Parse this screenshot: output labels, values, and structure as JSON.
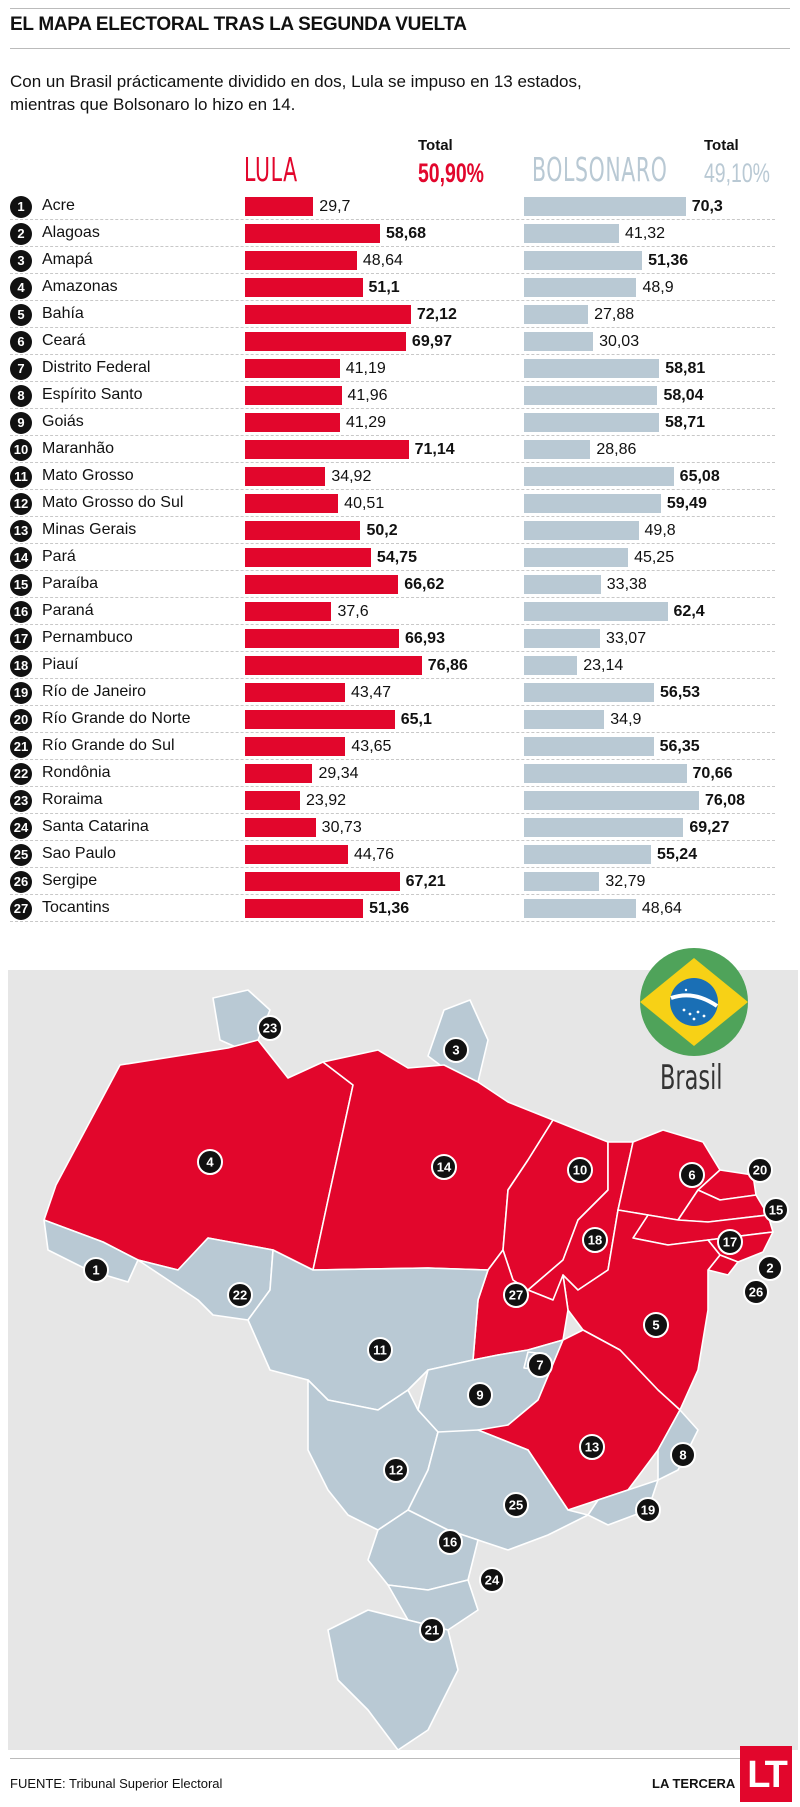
{
  "header": {
    "title": "EL MAPA ELECTORAL TRAS LA SEGUNDA VUELTA",
    "subtitle": "Con un Brasil prácticamente dividido en dos, Lula se impuso en 13 estados, mientras que Bolsonaro lo hizo en 14."
  },
  "candidates": {
    "lula": {
      "name": "LULA",
      "total_label": "Total",
      "total": "50,90%",
      "color": "#e2062c"
    },
    "bolsonaro": {
      "name": "BOLSONARO",
      "total_label": "Total",
      "total": "49,10%",
      "color": "#b9c9d4"
    }
  },
  "chart_data": {
    "type": "bar",
    "title": "",
    "categories": [
      "Acre",
      "Alagoas",
      "Amapá",
      "Amazonas",
      "Bahía",
      "Ceará",
      "Distrito Federal",
      "Espírito Santo",
      "Goiás",
      "Maranhão",
      "Mato Grosso",
      "Mato Grosso do Sul",
      "Minas Gerais",
      "Pará",
      "Paraíba",
      "Paraná",
      "Pernambuco",
      "Piauí",
      "Río de Janeiro",
      "Río Grande do Norte",
      "Río Grande do Sul",
      "Rondônia",
      "Roraima",
      "Santa Catarina",
      "Sao Paulo",
      "Sergipe",
      "Tocantins"
    ],
    "series": [
      {
        "name": "LULA",
        "color": "#e2062c",
        "values": [
          29.7,
          58.68,
          48.64,
          51.1,
          72.12,
          69.97,
          41.19,
          41.96,
          41.29,
          71.14,
          34.92,
          40.51,
          50.2,
          54.75,
          66.62,
          37.6,
          66.93,
          76.86,
          43.47,
          65.1,
          43.65,
          29.34,
          23.92,
          30.73,
          44.76,
          67.21,
          51.36
        ],
        "labels": [
          "29,7",
          "58,68",
          "48,64",
          "51,1",
          "72,12",
          "69,97",
          "41,19",
          "41,96",
          "41,29",
          "71,14",
          "34,92",
          "40,51",
          "50,2",
          "54,75",
          "66,62",
          "37,6",
          "66,93",
          "76,86",
          "43,47",
          "65,1",
          "43,65",
          "29,34",
          "23,92",
          "30,73",
          "44,76",
          "67,21",
          "51,36"
        ]
      },
      {
        "name": "BOLSONARO",
        "color": "#b9c9d4",
        "values": [
          70.3,
          41.32,
          51.36,
          48.9,
          27.88,
          30.03,
          58.81,
          58.04,
          58.71,
          28.86,
          65.08,
          59.49,
          49.8,
          45.25,
          33.38,
          62.4,
          33.07,
          23.14,
          56.53,
          34.9,
          56.35,
          70.66,
          76.08,
          69.27,
          55.24,
          32.79,
          48.64
        ],
        "labels": [
          "70,3",
          "41,32",
          "51,36",
          "48,9",
          "27,88",
          "30,03",
          "58,81",
          "58,04",
          "58,71",
          "28,86",
          "65,08",
          "59,49",
          "49,8",
          "45,25",
          "33,38",
          "62,4",
          "33,07",
          "23,14",
          "56,53",
          "34,9",
          "56,35",
          "70,66",
          "76,08",
          "69,27",
          "55,24",
          "32,79",
          "48,64"
        ]
      }
    ],
    "numbers": [
      "1",
      "2",
      "3",
      "4",
      "5",
      "6",
      "7",
      "8",
      "9",
      "10",
      "11",
      "12",
      "13",
      "14",
      "15",
      "16",
      "17",
      "18",
      "19",
      "20",
      "21",
      "22",
      "23",
      "24",
      "25",
      "26",
      "27"
    ]
  },
  "map": {
    "label": "Brasil",
    "lula_states": [
      "2",
      "4",
      "5",
      "6",
      "10",
      "13",
      "14",
      "15",
      "17",
      "18",
      "20",
      "26",
      "27"
    ],
    "bolsonaro_states": [
      "1",
      "3",
      "7",
      "8",
      "9",
      "11",
      "12",
      "16",
      "19",
      "21",
      "22",
      "23",
      "24",
      "25"
    ]
  },
  "footer": {
    "source": "FUENTE: Tribunal Superior Electoral",
    "brand": "LA TERCERA",
    "logo": "LT"
  }
}
